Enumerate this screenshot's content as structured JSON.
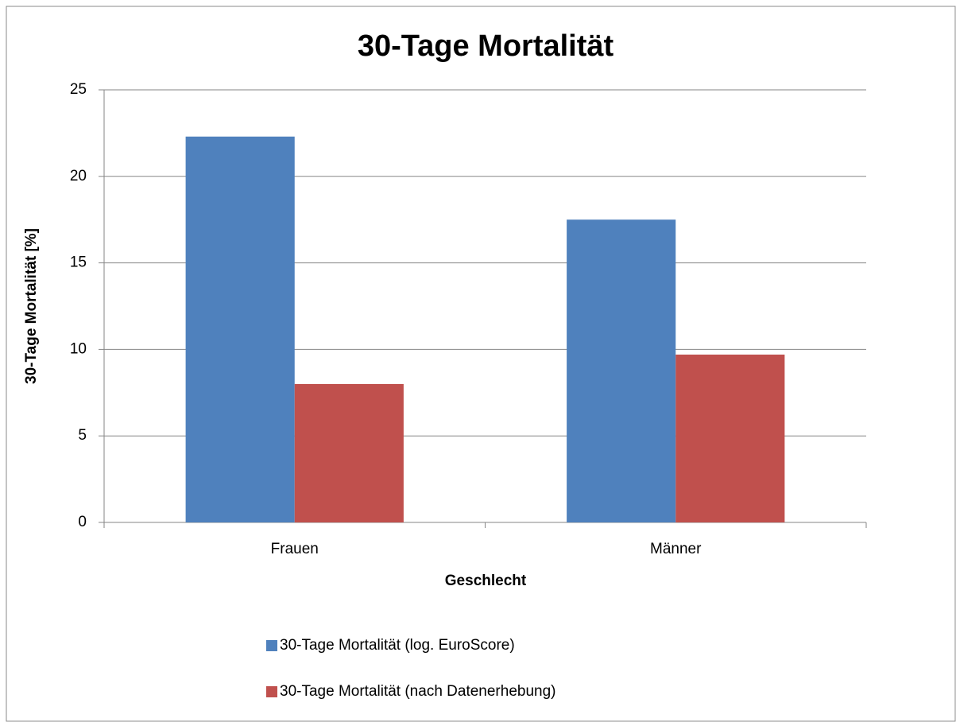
{
  "chart_data": {
    "type": "bar",
    "title": "30-Tage Mortalität",
    "ylabel": "30-Tage Mortalität [%]",
    "xlabel": "Geschlecht",
    "categories": [
      "Frauen",
      "Männer"
    ],
    "series": [
      {
        "name": "30-Tage Mortalität (log. EuroScore)",
        "color": "#4f81bd",
        "values": [
          22.3,
          17.5
        ]
      },
      {
        "name": "30-Tage Mortalität (nach Datenerhebung)",
        "color": "#c0504d",
        "values": [
          8.0,
          9.7
        ]
      }
    ],
    "ylim": [
      0,
      25
    ],
    "yticks": [
      0,
      5,
      10,
      15,
      20,
      25
    ],
    "grid": true,
    "legend": "bottom"
  }
}
